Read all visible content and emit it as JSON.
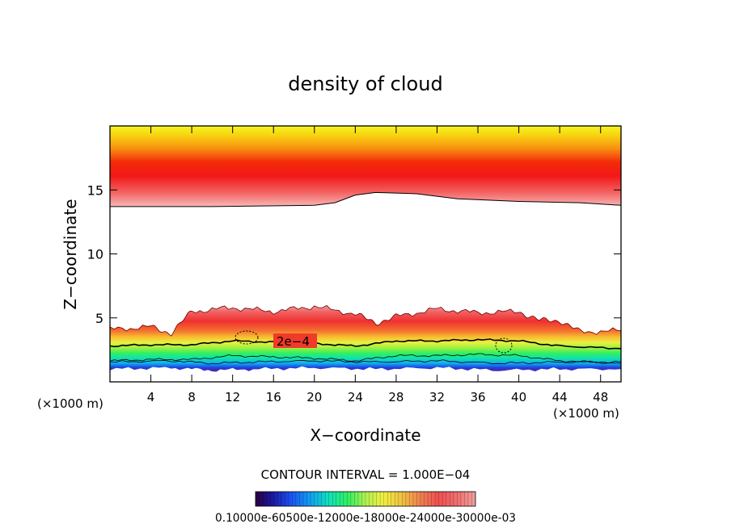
{
  "chart_data": {
    "type": "heatmap",
    "title": "density of cloud",
    "xlabel": "X−coordinate",
    "ylabel": "Z−coordinate",
    "x_unit_left": "(×1000 m)",
    "x_unit_right": "(×1000 m)",
    "xlim": [
      0,
      50
    ],
    "ylim": [
      0,
      20
    ],
    "x_ticks": [
      4,
      8,
      12,
      16,
      20,
      24,
      28,
      32,
      36,
      40,
      44,
      48
    ],
    "x_tick_labels": [
      "4",
      "8",
      "12",
      "16",
      "20",
      "24",
      "28",
      "32",
      "36",
      "40",
      "44",
      "48"
    ],
    "y_ticks": [
      5,
      10,
      15
    ],
    "y_tick_labels": [
      "5",
      "10",
      "15"
    ],
    "contour_label": "2e−4",
    "contour_interval_text": "CONTOUR INTERVAL = 1.000E−04",
    "colorbar_labels_text": "0.10000e-60500e-12000e-18000e-24000e-30000e-03",
    "colorbar_colors": [
      "#2a0040",
      "#1a1aa0",
      "#1e50f0",
      "#10a0f0",
      "#10e0c0",
      "#30f060",
      "#b0f050",
      "#f0f040",
      "#f0c040",
      "#f08050",
      "#f05050",
      "#f07070",
      "#f0a0a0"
    ],
    "upper_layer_boundary": [
      [
        0,
        13.7
      ],
      [
        10,
        13.7
      ],
      [
        20,
        13.8
      ],
      [
        22,
        14.0
      ],
      [
        24,
        14.6
      ],
      [
        26,
        14.8
      ],
      [
        30,
        14.7
      ],
      [
        34,
        14.3
      ],
      [
        40,
        14.1
      ],
      [
        46,
        14.0
      ],
      [
        50,
        13.8
      ]
    ],
    "lower_layer_top": [
      [
        0,
        4.1
      ],
      [
        4,
        4.3
      ],
      [
        6,
        3.8
      ],
      [
        8,
        5.5
      ],
      [
        12,
        5.8
      ],
      [
        16,
        5.5
      ],
      [
        20,
        5.9
      ],
      [
        24,
        5.3
      ],
      [
        26,
        4.6
      ],
      [
        28,
        5.1
      ],
      [
        32,
        5.7
      ],
      [
        36,
        5.4
      ],
      [
        40,
        5.5
      ],
      [
        42,
        4.8
      ],
      [
        44,
        4.8
      ],
      [
        46,
        3.9
      ],
      [
        50,
        4.0
      ]
    ],
    "contour_2e4": [
      [
        0,
        2.8
      ],
      [
        4,
        2.9
      ],
      [
        8,
        2.9
      ],
      [
        12,
        3.2
      ],
      [
        16,
        3.1
      ],
      [
        20,
        3.0
      ],
      [
        24,
        2.8
      ],
      [
        28,
        3.2
      ],
      [
        32,
        3.2
      ],
      [
        36,
        3.3
      ],
      [
        40,
        3.2
      ],
      [
        44,
        2.8
      ],
      [
        50,
        2.6
      ]
    ],
    "lower_base": [
      [
        0,
        1.0
      ],
      [
        6,
        1.1
      ],
      [
        10,
        0.9
      ],
      [
        14,
        1.0
      ],
      [
        20,
        1.1
      ],
      [
        26,
        1.0
      ],
      [
        32,
        1.1
      ],
      [
        38,
        0.9
      ],
      [
        44,
        1.0
      ],
      [
        50,
        1.0
      ]
    ]
  }
}
